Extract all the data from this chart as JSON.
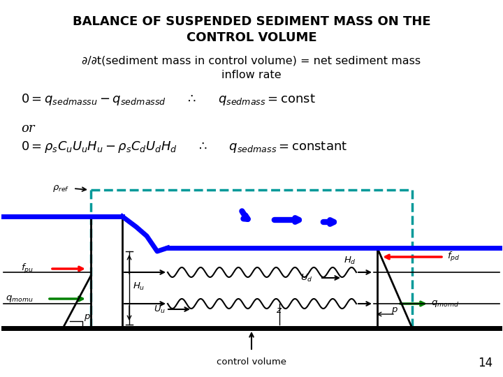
{
  "title_line1": "BALANCE OF SUSPENDED SEDIMENT MASS ON THE",
  "title_line2": "CONTROL VOLUME",
  "subtitle": "∂/∂t(sediment mass in control volume) = net sediment mass\n                        inflow rate",
  "page_number": "14",
  "bg_color": "#ffffff"
}
